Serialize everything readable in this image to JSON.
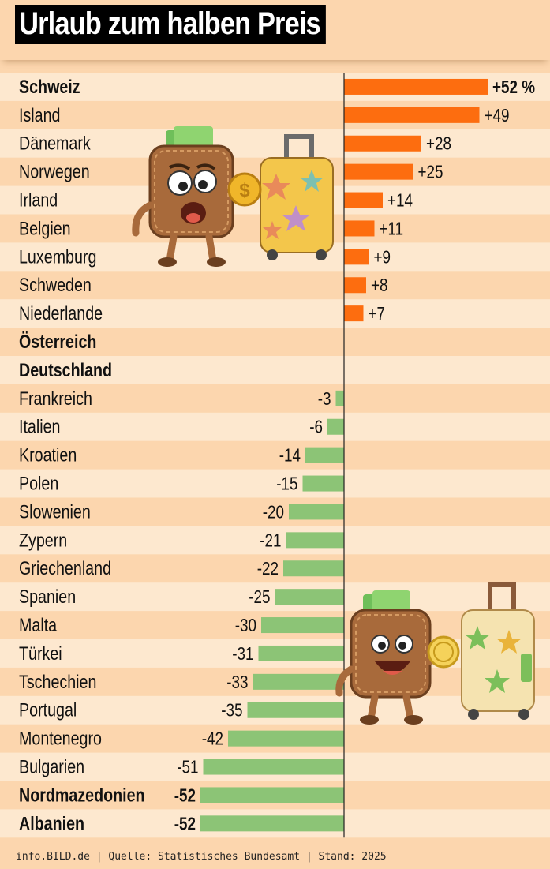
{
  "header": {
    "title": "Urlaub zum halben Preis"
  },
  "footer": {
    "source": "info.BILD.de | Quelle: Statistisches Bundesamt | Stand: 2025"
  },
  "colors": {
    "background": "#fcd6ae",
    "row_stripe": "#fde8cf",
    "positive_bar": "#fd6d0f",
    "negative_bar": "#8cc476",
    "text": "#111111"
  },
  "illustrations": {
    "top": "worried-wallet-with-suitcase-icon",
    "bottom": "happy-wallet-with-suitcase-icon"
  },
  "chart_data": {
    "type": "bar",
    "orientation": "horizontal",
    "title": "Urlaub zum halben Preis",
    "xlim": [
      -52,
      52
    ],
    "categories": [
      "Schweiz",
      "Island",
      "Dänemark",
      "Norwegen",
      "Irland",
      "Belgien",
      "Luxemburg",
      "Schweden",
      "Niederlande",
      "Österreich",
      "Deutschland",
      "Frankreich",
      "Italien",
      "Kroatien",
      "Polen",
      "Slowenien",
      "Zypern",
      "Griechenland",
      "Spanien",
      "Malta",
      "Türkei",
      "Tschechien",
      "Portugal",
      "Montenegro",
      "Bulgarien",
      "Nordmazedonien",
      "Albanien"
    ],
    "values": [
      52,
      49,
      28,
      25,
      14,
      11,
      9,
      8,
      7,
      0,
      0,
      -3,
      -6,
      -14,
      -15,
      -20,
      -21,
      -22,
      -25,
      -30,
      -31,
      -33,
      -35,
      -42,
      -51,
      -52,
      -52
    ],
    "value_labels": [
      "+52 %",
      "+49",
      "+28",
      "+25",
      "+14",
      "+11",
      "+9",
      "+8",
      "+7",
      "",
      "",
      "-3",
      "-6",
      "-14",
      "-15",
      "-20",
      "-21",
      "-22",
      "-25",
      "-30",
      "-31",
      "-33",
      "-35",
      "-42",
      "-51",
      "-52",
      "-52"
    ],
    "highlighted": [
      "Schweiz",
      "Österreich",
      "Deutschland",
      "Nordmazedonien",
      "Albanien"
    ],
    "grid": false,
    "legend": "none"
  }
}
